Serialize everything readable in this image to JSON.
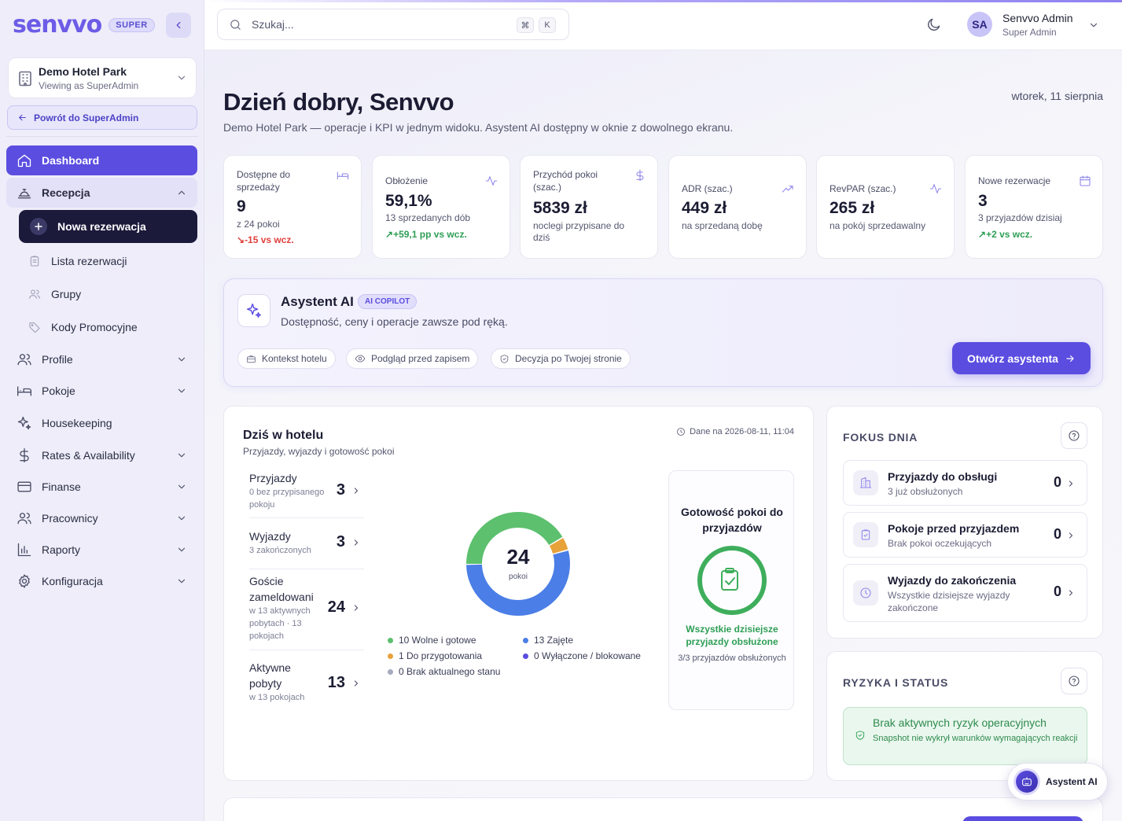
{
  "brand": {
    "logo": "senvvo",
    "badge": "SUPER"
  },
  "hotel": {
    "name": "Demo Hotel Park",
    "viewing": "Viewing as SuperAdmin"
  },
  "back_link": "Powrót do SuperAdmin",
  "nav": {
    "dashboard": "Dashboard",
    "recepcja": "Recepcja",
    "new_reservation": "Nowa rezerwacja",
    "sub": [
      "Lista rezerwacji",
      "Grupy",
      "Kody Promocyjne"
    ],
    "items": [
      "Profile",
      "Pokoje",
      "Housekeeping",
      "Rates & Availability",
      "Finanse",
      "Pracownicy",
      "Raporty",
      "Konfiguracja"
    ]
  },
  "search": {
    "placeholder": "Szukaj...",
    "key1": "⌘",
    "key2": "K"
  },
  "user": {
    "initials": "SA",
    "name": "Senvvo Admin",
    "role": "Super Admin"
  },
  "header": {
    "greeting": "Dzień dobry, Senvvo",
    "subtitle": "Demo Hotel Park — operacje i KPI w jednym widoku. Asystent AI dostępny w oknie z dowolnego ekranu.",
    "date": "wtorek, 11 sierpnia"
  },
  "kpis": [
    {
      "label": "Dostępne do sprzedaży",
      "value": "9",
      "sub": "z 24 pokoi",
      "delta": "-15 vs wcz.",
      "icon": "bed-icon"
    },
    {
      "label": "Obłożenie",
      "value": "59,1%",
      "sub": "13 sprzedanych dób",
      "delta": "+59,1 pp vs wcz.",
      "icon": "activity-icon"
    },
    {
      "label": "Przychód pokoi (szac.)",
      "value": "5839 zł",
      "sub": "noclegi przypisane do dziś",
      "delta": "",
      "icon": "dollar-icon"
    },
    {
      "label": "ADR (szac.)",
      "value": "449 zł",
      "sub": "na sprzedaną dobę",
      "delta": "",
      "icon": "trending-up-icon"
    },
    {
      "label": "RevPAR (szac.)",
      "value": "265 zł",
      "sub": "na pokój sprzedawalny",
      "delta": "",
      "icon": "activity-icon"
    },
    {
      "label": "Nowe rezerwacje",
      "value": "3",
      "sub": "3 przyjazdów dzisiaj",
      "delta": "+2 vs wcz.",
      "icon": "calendar-icon"
    }
  ],
  "ai": {
    "title": "Asystent AI",
    "badge": "AI COPILOT",
    "desc": "Dostępność, ceny i operacje zawsze pod ręką.",
    "chips": [
      "Kontekst hotelu",
      "Podgląd przed zapisem",
      "Decyzja po Twojej stronie"
    ],
    "button": "Otwórz asystenta"
  },
  "today": {
    "title": "Dziś w hotelu",
    "subtitle": "Przyjazdy, wyjazdy i gotowość pokoi",
    "stamp": "Dane na 2026-08-11, 11:04",
    "stats": [
      {
        "label": "Przyjazdy",
        "sub": "0 bez przypisanego pokoju",
        "value": "3"
      },
      {
        "label": "Wyjazdy",
        "sub": "3 zakończonych",
        "value": "3"
      },
      {
        "label": "Goście zameldowani",
        "sub": "w 13 aktywnych pobytach · 13 pokojach",
        "value": "24"
      },
      {
        "label": "Aktywne pobyty",
        "sub": "w 13 pokojach",
        "value": "13"
      }
    ],
    "donut_total": "24",
    "donut_label": "pokoi",
    "legend": [
      "10 Wolne i gotowe",
      "13 Zajęte",
      "1 Do przygotowania",
      "0 Wyłączone / blokowane",
      "0 Brak aktualnego stanu"
    ],
    "ready_title": "Gotowość pokoi do przyjazdów",
    "ready_ok": "Wszystkie dzisiejsze przyjazdy obsłużone",
    "ready_count": "3/3 przyjazdów obsłużonych"
  },
  "chart_data": {
    "type": "pie",
    "categories": [
      "Wolne i gotowe",
      "Zajęte",
      "Do przygotowania",
      "Wyłączone / blokowane",
      "Brak aktualnego stanu"
    ],
    "values": [
      10,
      13,
      1,
      0,
      0
    ],
    "colors": [
      "#5cc06e",
      "#4b7ee6",
      "#e8a23a",
      "#5b4de0",
      "#a7a9bd"
    ]
  },
  "focus": {
    "title": "FOKUS DNIA",
    "items": [
      {
        "title": "Przyjazdy do obsługi",
        "sub": "3 już obsłużonych",
        "value": "0"
      },
      {
        "title": "Pokoje przed przyjazdem",
        "sub": "Brak pokoi oczekujących",
        "value": "0"
      },
      {
        "title": "Wyjazdy do zakończenia",
        "sub": "Wszystkie dzisiejsze wyjazdy zakończone",
        "value": "0"
      }
    ]
  },
  "risk": {
    "title": "RYZYKA I STATUS",
    "ok_title": "Brak aktywnych ryzyk operacyjnych",
    "ok_sub": "Snapshot nie wykrył warunków wymagających reakcji"
  },
  "float_ai": "Asystent AI"
}
